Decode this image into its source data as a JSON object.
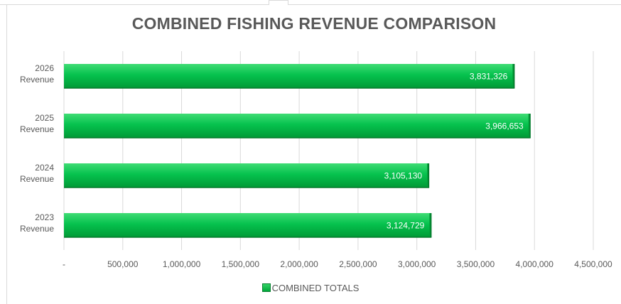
{
  "chart_data": {
    "type": "bar",
    "orientation": "horizontal",
    "title": "COMBINED FISHING REVENUE COMPARISON",
    "categories": [
      "2026 Revenue",
      "2025 Revenue",
      "2024 Revenue",
      "2023 Revenue"
    ],
    "category_lines": [
      [
        "2026",
        "Revenue"
      ],
      [
        "2025",
        "Revenue"
      ],
      [
        "2024",
        "Revenue"
      ],
      [
        "2023",
        "Revenue"
      ]
    ],
    "series": [
      {
        "name": "COMBINED TOTALS",
        "values": [
          3831326,
          3966653,
          3105130,
          3124729
        ],
        "data_labels": [
          "3,831,326",
          "3,966,653",
          "3,105,130",
          "3,124,729"
        ],
        "color": "#00c04b"
      }
    ],
    "xlim": [
      0,
      4500000
    ],
    "x_ticks": [
      0,
      500000,
      1000000,
      1500000,
      2000000,
      2500000,
      3000000,
      3500000,
      4000000,
      4500000
    ],
    "x_tick_labels": [
      "-",
      "500,000",
      "1,000,000",
      "1,500,000",
      "2,000,000",
      "2,500,000",
      "3,000,000",
      "3,500,000",
      "4,000,000",
      "4,500,000"
    ],
    "grid": "vertical",
    "legend_position": "bottom"
  },
  "legend": {
    "label": "COMBINED TOTALS"
  },
  "colors": {
    "bar": "#00c04b",
    "bar_dark": "#0a8f35",
    "grid": "#d9d9d9",
    "text": "#595959"
  }
}
